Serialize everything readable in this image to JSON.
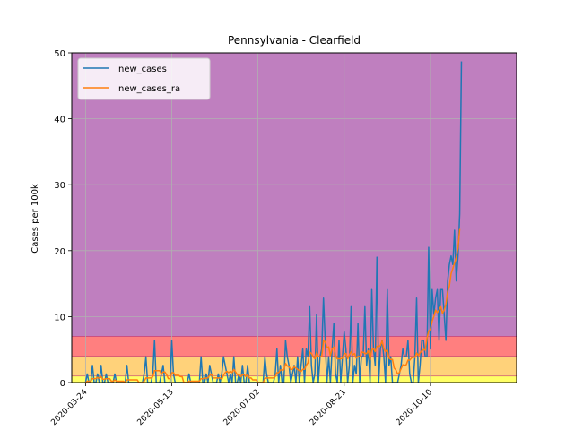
{
  "chart_data": {
    "type": "line",
    "title": "Pennsylvania - Clearfield",
    "xlabel": "",
    "ylabel": "Cases per 100k",
    "ylim": [
      0,
      50
    ],
    "xlim": [
      "2020-03-16",
      "2020-11-29"
    ],
    "grid": true,
    "legend": "top-left",
    "yticks": [
      0,
      10,
      20,
      30,
      40,
      50
    ],
    "xticks": [
      "2020-03-24",
      "2020-05-13",
      "2020-07-02",
      "2020-08-21",
      "2020-10-10"
    ],
    "xtick_labels": [
      "2020-03-24",
      "2020-05-13",
      "2020-07-02",
      "2020-08-21",
      "2020-10-10"
    ],
    "bands": [
      {
        "from": 0,
        "to": 1,
        "color": "#ffff66"
      },
      {
        "from": 1,
        "to": 4,
        "color": "#ffd27a"
      },
      {
        "from": 4,
        "to": 7,
        "color": "#ff7f7f"
      },
      {
        "from": 7,
        "to": 50,
        "color": "#bf7fbf"
      }
    ],
    "band_line_color": "#c0306a",
    "start_date": "2020-03-24",
    "series": [
      {
        "name": "new_cases",
        "color": "#1f77b4",
        "values": [
          0,
          1.3,
          0,
          0,
          2.6,
          0,
          0,
          1.3,
          0,
          2.6,
          0,
          0,
          1.3,
          0,
          0,
          0,
          0,
          1.3,
          0,
          0,
          0,
          0,
          0,
          0,
          2.6,
          0,
          0,
          0,
          0,
          0,
          0,
          0,
          0,
          0,
          1.3,
          3.9,
          0,
          0,
          0,
          1.3,
          6.4,
          0,
          0,
          0,
          1.3,
          2.6,
          0,
          0,
          0,
          0,
          6.4,
          1.3,
          0,
          0,
          0,
          0,
          0,
          0,
          0,
          0,
          1.3,
          0,
          0,
          0,
          0,
          0,
          0,
          3.9,
          0,
          0,
          1.3,
          0,
          2.6,
          1.3,
          0,
          0,
          0,
          1.3,
          0,
          1.3,
          3.9,
          2.6,
          1.3,
          0,
          1.3,
          0,
          3.9,
          0,
          0,
          1.3,
          0,
          2.6,
          0,
          0,
          2.6,
          0,
          0,
          0,
          0,
          0,
          0,
          0,
          0,
          0,
          3.9,
          1.3,
          0,
          0,
          0,
          0,
          1.3,
          5.1,
          0,
          2.6,
          0,
          0,
          6.4,
          3.9,
          2.6,
          0,
          1.3,
          2.6,
          0,
          3.9,
          0,
          2.6,
          5.1,
          0,
          5.1,
          3.9,
          11.5,
          2.6,
          0,
          1.3,
          10.3,
          0,
          3.9,
          5.1,
          12.8,
          6.4,
          0,
          3.9,
          0,
          5.1,
          9,
          1.3,
          0,
          6.4,
          0,
          3.9,
          7.7,
          5.1,
          0,
          2.6,
          11.5,
          0,
          2.6,
          1.3,
          9,
          0,
          3.9,
          3.9,
          11.5,
          2.6,
          5.1,
          0,
          14.1,
          5.1,
          2.6,
          19,
          0,
          5.1,
          6.4,
          3.9,
          0,
          14.1,
          2.6,
          3.9,
          0,
          0,
          0,
          0,
          1.3,
          2.6,
          5.1,
          3.9,
          3.9,
          6.4,
          1.3,
          0,
          0,
          3.9,
          12.8,
          0,
          2.6,
          6.4,
          6.4,
          3.9,
          3.9,
          20.5,
          5.1,
          14.1,
          10.3,
          12.8,
          14.1,
          6.4,
          14.1,
          14.1,
          10.3,
          6.4,
          15.4,
          17.9,
          19.2,
          17.9,
          23.1,
          15.4,
          19.2,
          25.6,
          48.7
        ]
      },
      {
        "name": "new_cases_ra",
        "color": "#ff7f0e",
        "values": [
          0,
          0.2,
          0.2,
          0.2,
          0.6,
          0.6,
          0.6,
          0.8,
          0.6,
          0.9,
          0.5,
          0.5,
          0.6,
          0.6,
          0.6,
          0.2,
          0.2,
          0.4,
          0.2,
          0.2,
          0.2,
          0.2,
          0.2,
          0,
          0.4,
          0.4,
          0.4,
          0.4,
          0.4,
          0.4,
          0.4,
          0,
          0,
          0,
          0.2,
          0.7,
          0.7,
          0.7,
          0.7,
          0.9,
          1.8,
          1.8,
          1.8,
          1.8,
          1.3,
          1.6,
          1.6,
          1.2,
          0.6,
          0.6,
          1.5,
          1.5,
          1.1,
          1.1,
          1.1,
          0.9,
          0.9,
          0,
          0,
          0,
          0.2,
          0.2,
          0.2,
          0.2,
          0.2,
          0.2,
          0.2,
          0.6,
          0.6,
          0.6,
          0.7,
          0.7,
          1.1,
          1.3,
          0.7,
          0.7,
          0.7,
          0.7,
          0.7,
          0.5,
          1.1,
          1.5,
          1.7,
          1.5,
          1.7,
          1.5,
          2.0,
          1.6,
          1.2,
          1.2,
          0.9,
          1.2,
          1.2,
          0.9,
          1.2,
          0.7,
          0.7,
          0.4,
          0.4,
          0.4,
          0,
          0,
          0,
          0,
          0.6,
          0.7,
          0.7,
          0.7,
          0.7,
          0.7,
          0.9,
          1.5,
          1.5,
          1.9,
          1.9,
          1.9,
          2.9,
          2.5,
          2.4,
          2.0,
          2.0,
          2.4,
          2.2,
          2.0,
          1.8,
          1.7,
          2.0,
          2.0,
          2.6,
          3.0,
          4.6,
          4.4,
          3.9,
          3.6,
          4.6,
          3.9,
          3.9,
          4.0,
          6.3,
          6.2,
          5.3,
          5.4,
          4.1,
          5.1,
          5.4,
          4.1,
          3.6,
          3.6,
          3.6,
          3.7,
          4.4,
          4.4,
          3.6,
          4.2,
          4.7,
          4.2,
          4.4,
          3.7,
          4.0,
          3.9,
          4.6,
          4.6,
          4.4,
          4.4,
          4.8,
          3.4,
          5.0,
          5.1,
          4.7,
          5.5,
          5.5,
          5.6,
          6.3,
          5.1,
          4.7,
          5.0,
          3.7,
          3.5,
          3.5,
          2.2,
          1.9,
          1.3,
          1.5,
          2.1,
          2.7,
          2.6,
          2.7,
          3.4,
          3.4,
          3.7,
          3.9,
          3.8,
          4.5,
          4.1,
          4.5,
          4.8,
          5.0,
          4.9,
          6.7,
          7.8,
          8.1,
          9.3,
          10.0,
          11.0,
          10.6,
          11.0,
          11.5,
          10.5,
          11.0,
          11.9,
          13.8,
          14.6,
          16.5,
          17.3,
          18.1,
          19.0,
          20.4,
          23.3
        ]
      }
    ]
  }
}
